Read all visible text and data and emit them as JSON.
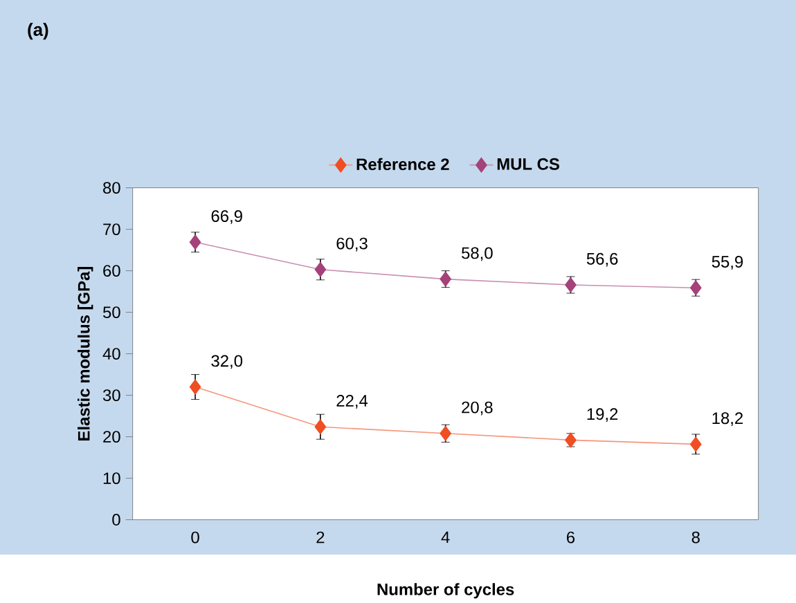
{
  "chart_data": {
    "type": "line",
    "title": "(a)",
    "xlabel": "Number of cycles",
    "ylabel": "Elastic modulus [GPa]",
    "categories": [
      "0",
      "2",
      "4",
      "6",
      "8"
    ],
    "ylim": [
      0,
      80
    ],
    "yticks": [
      0,
      10,
      20,
      30,
      40,
      50,
      60,
      70,
      80
    ],
    "legend": "top",
    "marker": "diamond",
    "series": [
      {
        "name": "Reference 2",
        "color": "#f04e23",
        "values": [
          32.0,
          22.4,
          20.8,
          19.2,
          18.2
        ],
        "errors": [
          3,
          3,
          2.1,
          1.6,
          2.4
        ],
        "value_labels": [
          "32,0",
          "22,4",
          "20,8",
          "19,2",
          "18,2"
        ]
      },
      {
        "name": "MUL CS",
        "color": "#a5427a",
        "values": [
          66.9,
          60.3,
          58.0,
          56.6,
          55.9
        ],
        "errors": [
          2.4,
          2.5,
          2,
          2,
          2
        ],
        "value_labels": [
          "66,9",
          "60,3",
          "58,0",
          "56,6",
          "55,9"
        ]
      }
    ]
  }
}
